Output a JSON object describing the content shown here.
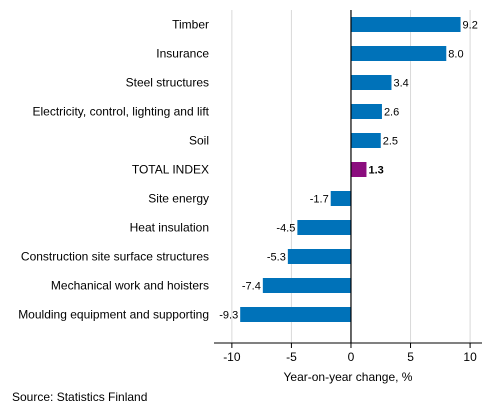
{
  "chart_data": {
    "type": "bar",
    "orientation": "horizontal",
    "categories": [
      "Timber",
      "Insurance",
      "Steel structures",
      "Electricity, control, lighting and lift",
      "Soil",
      "TOTAL INDEX",
      "Site energy",
      "Heat insulation",
      "Construction site surface structures",
      "Mechanical work and hoisters",
      "Moulding equipment and supporting"
    ],
    "values": [
      9.2,
      8.0,
      3.4,
      2.6,
      2.5,
      1.3,
      -1.7,
      -4.5,
      -5.3,
      -7.4,
      -9.3
    ],
    "value_labels": [
      "9.2",
      "8.0",
      "3.4",
      "2.6",
      "2.5",
      "1.3",
      "-1.7",
      "-4.5",
      "-5.3",
      "-7.4",
      "-9.3"
    ],
    "highlight_category": "TOTAL INDEX",
    "xlabel": "Year-on-year change, %",
    "xlim": [
      -11.5,
      11
    ],
    "xticks": [
      -10,
      -5,
      0,
      5,
      10
    ],
    "xtick_labels": [
      "-10",
      "-5",
      "0",
      "5",
      "10"
    ],
    "grid": "vertical",
    "legend": "none",
    "colors": {
      "bar": "#0072B9",
      "highlight": "#8B0D7E",
      "grid": "#d9d9d9",
      "axis": "#000000"
    }
  },
  "source": "Source: Statistics Finland"
}
